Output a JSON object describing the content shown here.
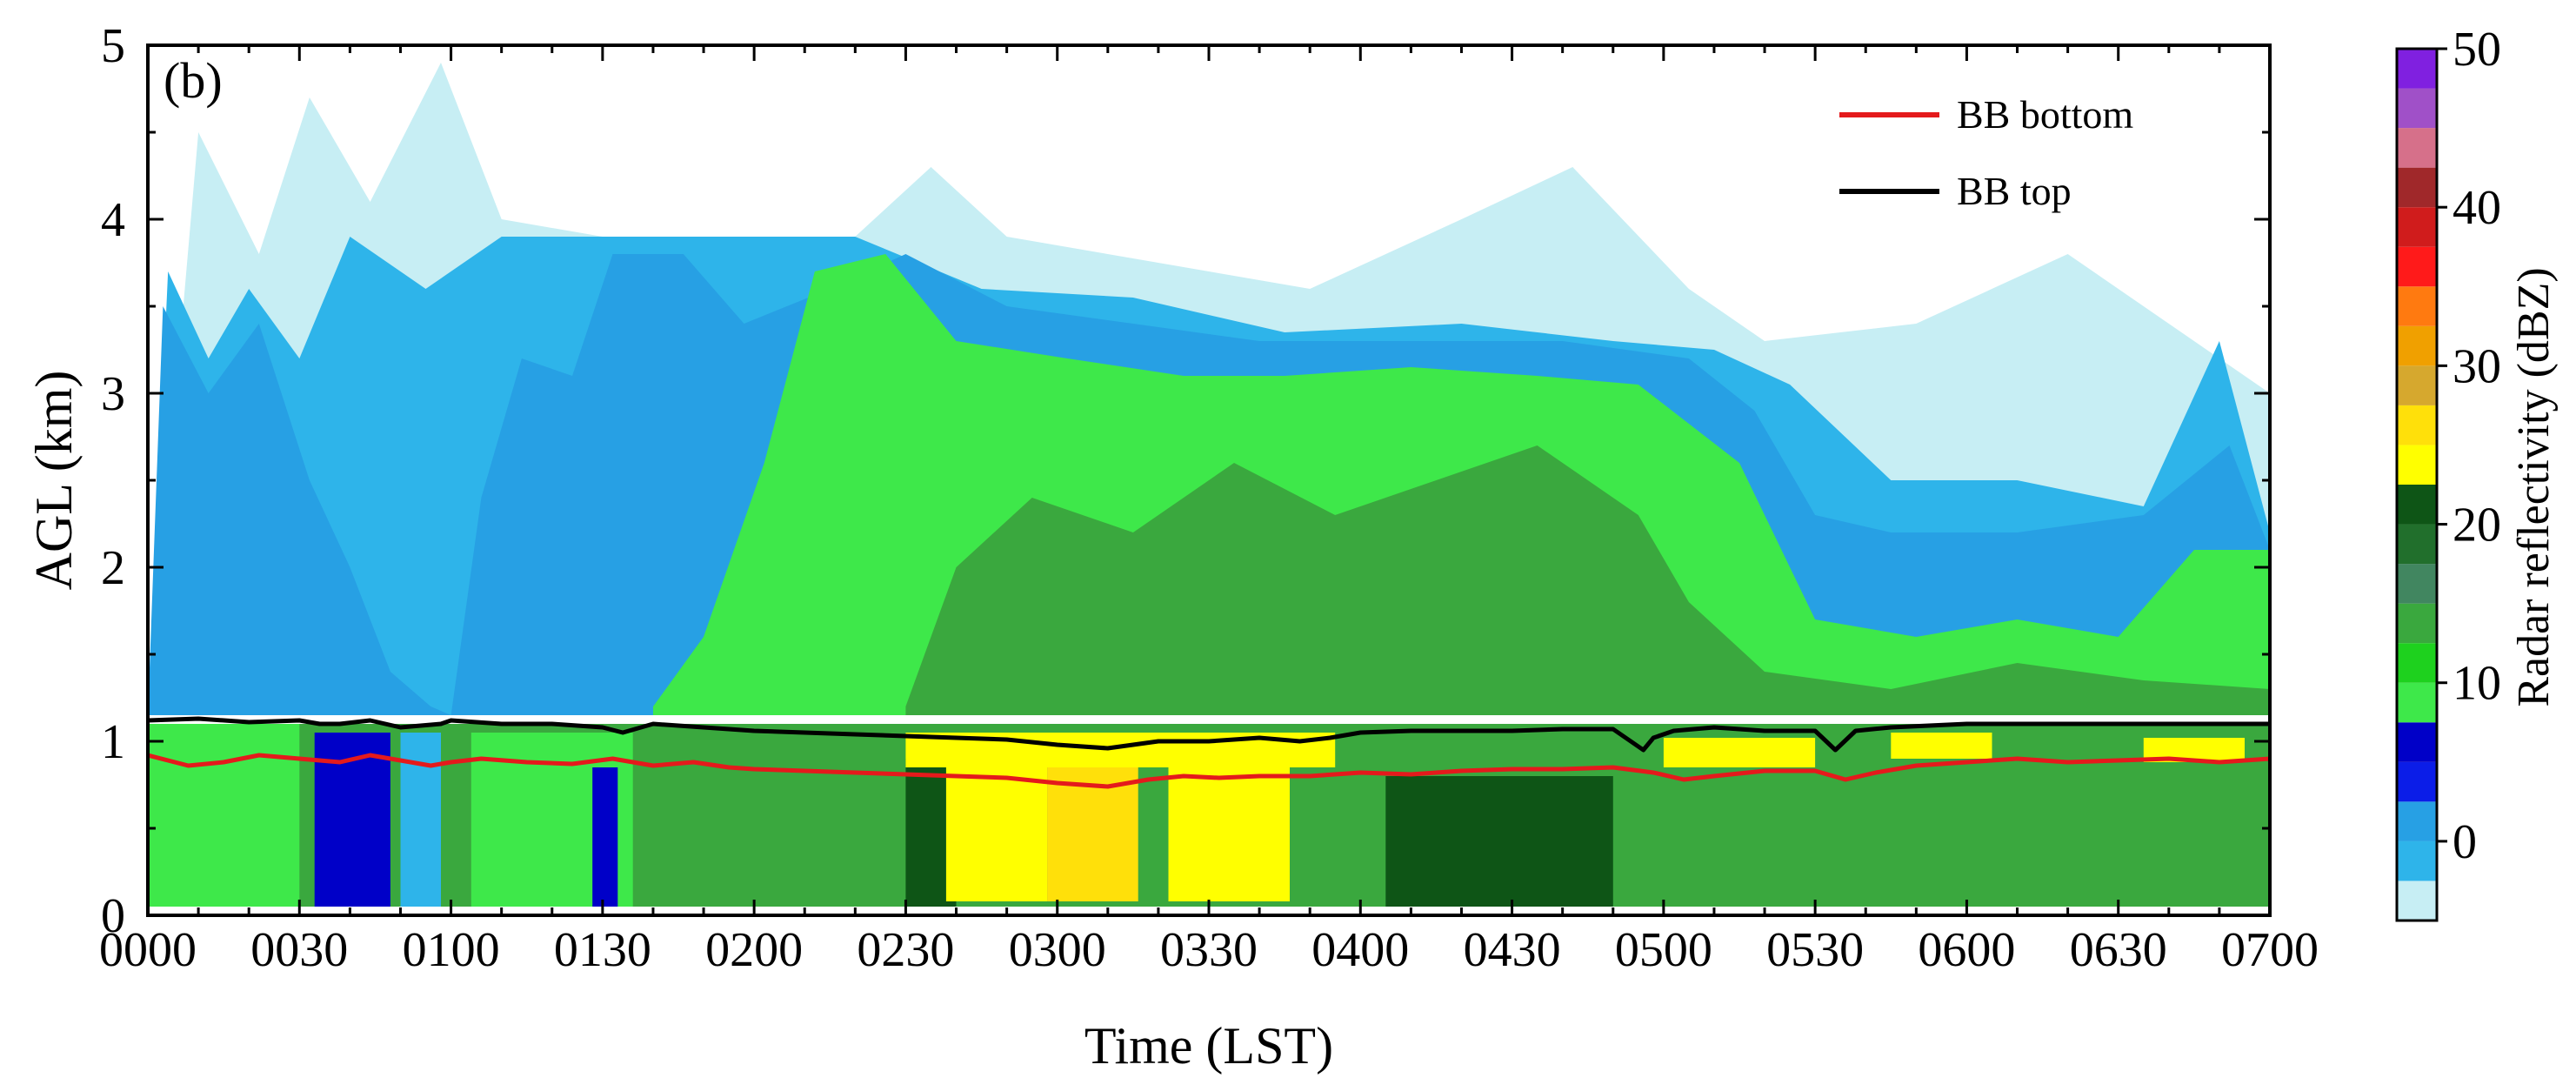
{
  "chart_data": {
    "type": "heatmap",
    "panel_label": "(b)",
    "xlabel": "Time (LST)",
    "ylabel": "AGL (km)",
    "xlim": [
      0,
      420
    ],
    "ylim": [
      0,
      5
    ],
    "x_ticks": [
      {
        "value": 0,
        "label": "0000"
      },
      {
        "value": 30,
        "label": "0030"
      },
      {
        "value": 60,
        "label": "0100"
      },
      {
        "value": 90,
        "label": "0130"
      },
      {
        "value": 120,
        "label": "0200"
      },
      {
        "value": 150,
        "label": "0230"
      },
      {
        "value": 180,
        "label": "0300"
      },
      {
        "value": 210,
        "label": "0330"
      },
      {
        "value": 240,
        "label": "0400"
      },
      {
        "value": 270,
        "label": "0430"
      },
      {
        "value": 300,
        "label": "0500"
      },
      {
        "value": 330,
        "label": "0530"
      },
      {
        "value": 360,
        "label": "0600"
      },
      {
        "value": 390,
        "label": "0630"
      },
      {
        "value": 420,
        "label": "0700"
      }
    ],
    "y_ticks": [
      {
        "value": 0,
        "label": "0"
      },
      {
        "value": 1,
        "label": "1"
      },
      {
        "value": 2,
        "label": "2"
      },
      {
        "value": 3,
        "label": "3"
      },
      {
        "value": 4,
        "label": "4"
      },
      {
        "value": 5,
        "label": "5"
      }
    ],
    "colorbar": {
      "label": "Radar reflectivity (dBZ)",
      "range": [
        -5,
        50
      ],
      "ticks": [
        {
          "value": 0,
          "label": "0"
        },
        {
          "value": 10,
          "label": "10"
        },
        {
          "value": 20,
          "label": "20"
        },
        {
          "value": 30,
          "label": "30"
        },
        {
          "value": 40,
          "label": "40"
        },
        {
          "value": 50,
          "label": "50"
        }
      ],
      "levels": [
        -5,
        -2.5,
        0,
        2.5,
        5,
        7.5,
        10,
        12.5,
        15,
        17.5,
        20,
        22.5,
        25,
        27.5,
        30,
        32.5,
        35,
        37.5,
        40,
        42.5,
        45,
        47.5,
        50
      ],
      "colors": [
        "#c7eef4",
        "#2eb4ea",
        "#27a0e4",
        "#0b1de8",
        "#0000c8",
        "#3ee84a",
        "#1ed11e",
        "#3aa83e",
        "#418660",
        "#216f2c",
        "#0e5516",
        "#ffff00",
        "#ffe00a",
        "#d6a82e",
        "#f0a000",
        "#ff7a10",
        "#ff1a1a",
        "#d01c1c",
        "#a0282a",
        "#d6708a",
        "#a050c8",
        "#8020e0"
      ]
    },
    "series": [
      {
        "name": "BB bottom",
        "color": "#e41a1c",
        "x": [
          0,
          8,
          15,
          22,
          30,
          38,
          44,
          50,
          56,
          60,
          66,
          75,
          84,
          92,
          100,
          108,
          115,
          120,
          130,
          140,
          150,
          160,
          170,
          180,
          190,
          198,
          205,
          212,
          220,
          230,
          240,
          250,
          260,
          270,
          280,
          290,
          298,
          304,
          310,
          320,
          330,
          336,
          342,
          350,
          360,
          370,
          380,
          390,
          400,
          410,
          420
        ],
        "y": [
          0.92,
          0.86,
          0.88,
          0.92,
          0.9,
          0.88,
          0.92,
          0.89,
          0.86,
          0.88,
          0.9,
          0.88,
          0.87,
          0.9,
          0.86,
          0.88,
          0.85,
          0.84,
          0.83,
          0.82,
          0.81,
          0.8,
          0.79,
          0.76,
          0.74,
          0.78,
          0.8,
          0.79,
          0.8,
          0.8,
          0.82,
          0.81,
          0.83,
          0.84,
          0.84,
          0.85,
          0.82,
          0.78,
          0.8,
          0.83,
          0.83,
          0.78,
          0.82,
          0.86,
          0.88,
          0.9,
          0.88,
          0.89,
          0.9,
          0.88,
          0.9
        ]
      },
      {
        "name": "BB top",
        "color": "#000000",
        "x": [
          0,
          10,
          20,
          30,
          34,
          38,
          44,
          50,
          58,
          60,
          70,
          80,
          90,
          94,
          100,
          110,
          120,
          130,
          140,
          150,
          160,
          170,
          180,
          190,
          200,
          210,
          220,
          228,
          234,
          240,
          250,
          260,
          270,
          280,
          290,
          296,
          298,
          302,
          310,
          320,
          330,
          334,
          338,
          345,
          360,
          375,
          390,
          405,
          420
        ],
        "y": [
          1.12,
          1.13,
          1.11,
          1.12,
          1.1,
          1.1,
          1.12,
          1.08,
          1.1,
          1.12,
          1.1,
          1.1,
          1.08,
          1.05,
          1.1,
          1.08,
          1.06,
          1.05,
          1.04,
          1.03,
          1.02,
          1.01,
          0.98,
          0.96,
          1.0,
          1.0,
          1.02,
          1.0,
          1.02,
          1.05,
          1.06,
          1.06,
          1.06,
          1.07,
          1.07,
          0.95,
          1.02,
          1.06,
          1.08,
          1.06,
          1.06,
          0.95,
          1.06,
          1.08,
          1.1,
          1.1,
          1.1,
          1.1,
          1.1
        ]
      }
    ],
    "legend": {
      "placement": "top-right",
      "entries": [
        "BB bottom",
        "BB top"
      ]
    },
    "regions": [
      {
        "level": 0,
        "polygon": [
          [
            0,
            1.15
          ],
          [
            10,
            4.5
          ],
          [
            22,
            3.8
          ],
          [
            32,
            4.7
          ],
          [
            44,
            4.1
          ],
          [
            58,
            4.9
          ],
          [
            70,
            4.0
          ],
          [
            90,
            3.9
          ],
          [
            120,
            3.9
          ],
          [
            140,
            3.9
          ],
          [
            155,
            4.3
          ],
          [
            170,
            3.9
          ],
          [
            200,
            3.75
          ],
          [
            230,
            3.6
          ],
          [
            260,
            4.0
          ],
          [
            282,
            4.3
          ],
          [
            305,
            3.6
          ],
          [
            320,
            3.3
          ],
          [
            350,
            3.4
          ],
          [
            380,
            3.8
          ],
          [
            400,
            3.4
          ],
          [
            420,
            3.0
          ],
          [
            420,
            1.15
          ]
        ]
      },
      {
        "level": 1,
        "polygon": [
          [
            0,
            1.15
          ],
          [
            4,
            3.7
          ],
          [
            12,
            3.2
          ],
          [
            20,
            3.6
          ],
          [
            30,
            3.2
          ],
          [
            40,
            3.9
          ],
          [
            55,
            3.6
          ],
          [
            70,
            3.9
          ],
          [
            90,
            3.9
          ],
          [
            120,
            3.9
          ],
          [
            140,
            3.9
          ],
          [
            165,
            3.6
          ],
          [
            195,
            3.55
          ],
          [
            225,
            3.35
          ],
          [
            260,
            3.4
          ],
          [
            290,
            3.3
          ],
          [
            310,
            3.25
          ],
          [
            325,
            3.05
          ],
          [
            345,
            2.5
          ],
          [
            370,
            2.5
          ],
          [
            395,
            2.35
          ],
          [
            410,
            3.3
          ],
          [
            420,
            2.2
          ],
          [
            420,
            1.15
          ]
        ]
      },
      {
        "level": 2,
        "polygon": [
          [
            0,
            1.15
          ],
          [
            3,
            3.5
          ],
          [
            12,
            3.0
          ],
          [
            22,
            3.4
          ],
          [
            32,
            2.5
          ],
          [
            40,
            2.0
          ],
          [
            48,
            1.4
          ],
          [
            56,
            1.2
          ],
          [
            60,
            1.15
          ],
          [
            66,
            2.4
          ],
          [
            74,
            3.2
          ],
          [
            84,
            3.1
          ],
          [
            92,
            3.8
          ],
          [
            106,
            3.8
          ],
          [
            118,
            3.4
          ],
          [
            135,
            3.6
          ],
          [
            150,
            3.8
          ],
          [
            170,
            3.5
          ],
          [
            195,
            3.4
          ],
          [
            220,
            3.3
          ],
          [
            250,
            3.3
          ],
          [
            280,
            3.3
          ],
          [
            305,
            3.2
          ],
          [
            318,
            2.9
          ],
          [
            330,
            2.3
          ],
          [
            345,
            2.2
          ],
          [
            370,
            2.2
          ],
          [
            395,
            2.3
          ],
          [
            412,
            2.7
          ],
          [
            420,
            2.1
          ],
          [
            420,
            1.15
          ]
        ]
      },
      {
        "level": 5,
        "polygon": [
          [
            100,
            1.2
          ],
          [
            110,
            1.6
          ],
          [
            122,
            2.6
          ],
          [
            132,
            3.7
          ],
          [
            146,
            3.8
          ],
          [
            160,
            3.3
          ],
          [
            182,
            3.2
          ],
          [
            205,
            3.1
          ],
          [
            225,
            3.1
          ],
          [
            250,
            3.15
          ],
          [
            275,
            3.1
          ],
          [
            295,
            3.05
          ],
          [
            315,
            2.6
          ],
          [
            330,
            1.7
          ],
          [
            350,
            1.6
          ],
          [
            370,
            1.7
          ],
          [
            390,
            1.6
          ],
          [
            405,
            2.1
          ],
          [
            420,
            2.1
          ],
          [
            420,
            1.15
          ],
          [
            100,
            1.15
          ]
        ]
      },
      {
        "level": 7,
        "polygon": [
          [
            150,
            1.2
          ],
          [
            160,
            2.0
          ],
          [
            175,
            2.4
          ],
          [
            195,
            2.2
          ],
          [
            215,
            2.6
          ],
          [
            235,
            2.3
          ],
          [
            255,
            2.5
          ],
          [
            275,
            2.7
          ],
          [
            295,
            2.3
          ],
          [
            305,
            1.8
          ],
          [
            320,
            1.4
          ],
          [
            345,
            1.3
          ],
          [
            370,
            1.45
          ],
          [
            395,
            1.35
          ],
          [
            420,
            1.3
          ],
          [
            420,
            1.15
          ],
          [
            150,
            1.15
          ]
        ]
      },
      {
        "level": 7,
        "polygon": [
          [
            0,
            0.05
          ],
          [
            420,
            0.05
          ],
          [
            420,
            1.1
          ],
          [
            0,
            1.1
          ]
        ]
      },
      {
        "level": 5,
        "polygon": [
          [
            0,
            0.05
          ],
          [
            30,
            0.05
          ],
          [
            30,
            1.1
          ],
          [
            0,
            1.1
          ]
        ]
      },
      {
        "level": 4,
        "polygon": [
          [
            33,
            0.05
          ],
          [
            48,
            0.05
          ],
          [
            48,
            1.05
          ],
          [
            33,
            1.05
          ]
        ]
      },
      {
        "level": 1,
        "polygon": [
          [
            50,
            0.05
          ],
          [
            58,
            0.05
          ],
          [
            58,
            1.05
          ],
          [
            50,
            1.05
          ]
        ]
      },
      {
        "level": 5,
        "polygon": [
          [
            64,
            0.05
          ],
          [
            96,
            0.05
          ],
          [
            96,
            1.05
          ],
          [
            64,
            1.05
          ]
        ]
      },
      {
        "level": 4,
        "polygon": [
          [
            88,
            0.05
          ],
          [
            93,
            0.05
          ],
          [
            93,
            0.85
          ],
          [
            88,
            0.85
          ]
        ]
      },
      {
        "level": 10,
        "polygon": [
          [
            150,
            0.05
          ],
          [
            160,
            0.05
          ],
          [
            160,
            0.9
          ],
          [
            150,
            0.9
          ]
        ]
      },
      {
        "level": 11,
        "polygon": [
          [
            158,
            0.08
          ],
          [
            178,
            0.08
          ],
          [
            178,
            0.95
          ],
          [
            158,
            0.95
          ]
        ]
      },
      {
        "level": 12,
        "polygon": [
          [
            178,
            0.08
          ],
          [
            196,
            0.08
          ],
          [
            196,
            0.9
          ],
          [
            178,
            0.9
          ]
        ]
      },
      {
        "level": 11,
        "polygon": [
          [
            202,
            0.08
          ],
          [
            226,
            0.08
          ],
          [
            226,
            1.05
          ],
          [
            202,
            1.05
          ]
        ]
      },
      {
        "level": 10,
        "polygon": [
          [
            245,
            0.05
          ],
          [
            290,
            0.05
          ],
          [
            290,
            0.8
          ],
          [
            245,
            0.8
          ]
        ]
      },
      {
        "level": 11,
        "polygon": [
          [
            150,
            0.85
          ],
          [
            235,
            0.85
          ],
          [
            235,
            1.05
          ],
          [
            150,
            1.05
          ]
        ]
      },
      {
        "level": 11,
        "polygon": [
          [
            300,
            0.85
          ],
          [
            330,
            0.85
          ],
          [
            330,
            1.02
          ],
          [
            300,
            1.02
          ]
        ]
      },
      {
        "level": 11,
        "polygon": [
          [
            345,
            0.9
          ],
          [
            365,
            0.9
          ],
          [
            365,
            1.05
          ],
          [
            345,
            1.05
          ]
        ]
      },
      {
        "level": 11,
        "polygon": [
          [
            395,
            0.88
          ],
          [
            415,
            0.88
          ],
          [
            415,
            1.02
          ],
          [
            395,
            1.02
          ]
        ]
      }
    ]
  }
}
